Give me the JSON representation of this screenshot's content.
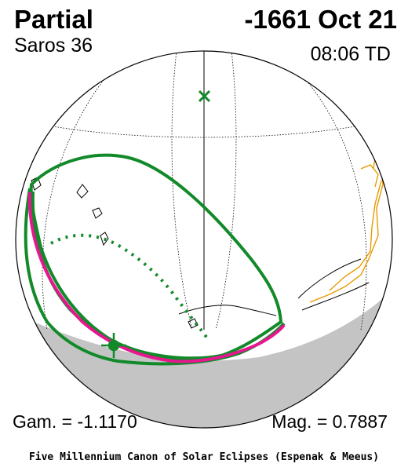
{
  "header": {
    "eclipse_type": "Partial",
    "date": "-1661 Oct 21",
    "saros": "Saros  36",
    "time": "08:06 TD"
  },
  "footer_stats": {
    "gamma": "Gam. = -1.1170",
    "magnitude": "Mag. = 0.7887"
  },
  "credit": "Five Millennium Canon of Solar Eclipses (Espenak & Meeus)",
  "colors": {
    "eclipse_limits": "#128a2a",
    "max_eclipse_path": "#e6168e",
    "land_outline": "#e89a00",
    "night_shade": "#c4c4c4",
    "grid": "#000000"
  },
  "markers": {
    "sub_solar_point": "x-mark-icon",
    "greatest_eclipse": "sun-star-icon"
  }
}
